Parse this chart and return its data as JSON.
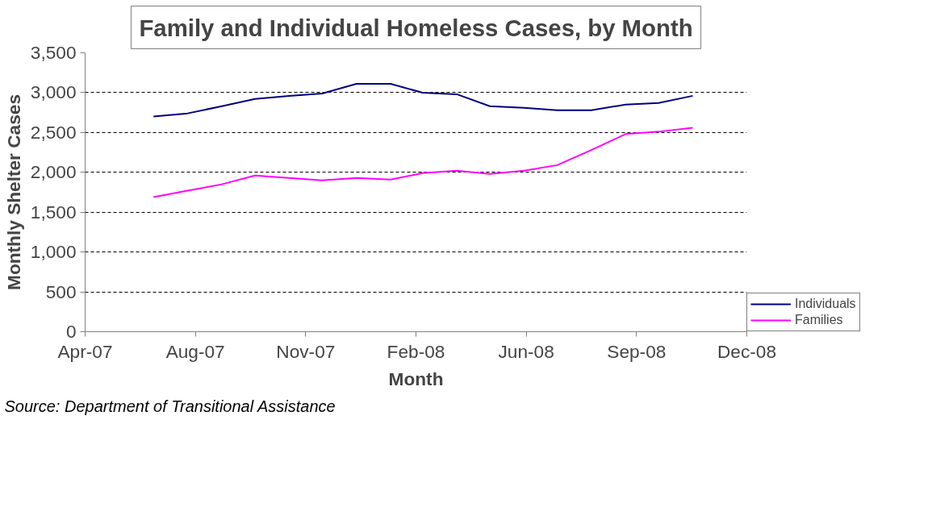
{
  "chart_data": {
    "type": "line",
    "title": "Family and Individual Homeless Cases, by Month",
    "xlabel": "Month",
    "ylabel": "Monthly Shelter Cases",
    "x": [
      "2007-07-01",
      "2007-08-01",
      "2007-09-01",
      "2007-10-01",
      "2007-11-01",
      "2007-12-01",
      "2008-01-01",
      "2008-02-01",
      "2008-03-01",
      "2008-04-01",
      "2008-05-01",
      "2008-06-01",
      "2008-07-01",
      "2008-08-01",
      "2008-09-01",
      "2008-10-01",
      "2008-11-01"
    ],
    "series": [
      {
        "name": "Individuals",
        "color": "#000080",
        "values": [
          2700,
          2740,
          2830,
          2920,
          2960,
          2990,
          3110,
          3110,
          3000,
          2980,
          2830,
          2810,
          2780,
          2780,
          2850,
          2870,
          2960
        ]
      },
      {
        "name": "Families",
        "color": "#ff00ff",
        "values": [
          1690,
          1770,
          1850,
          1960,
          1930,
          1900,
          1930,
          1910,
          1990,
          2020,
          1980,
          2020,
          2090,
          2280,
          2480,
          2510,
          2560
        ]
      }
    ],
    "xlim": [
      "2007-04-30",
      "2008-12-20"
    ],
    "xticks": [
      {
        "value": "2007-04-30",
        "label": "Apr-07"
      },
      {
        "value": "2007-08-08",
        "label": "Aug-07"
      },
      {
        "value": "2007-11-16",
        "label": "Nov-07"
      },
      {
        "value": "2008-02-24",
        "label": "Feb-08"
      },
      {
        "value": "2008-06-03",
        "label": "Jun-08"
      },
      {
        "value": "2008-09-11",
        "label": "Sep-08"
      },
      {
        "value": "2008-12-20",
        "label": "Dec-08"
      }
    ],
    "ylim": [
      0,
      3500
    ],
    "yticks": [
      {
        "value": 0,
        "label": "0"
      },
      {
        "value": 500,
        "label": "500"
      },
      {
        "value": 1000,
        "label": "1,000"
      },
      {
        "value": 1500,
        "label": "1,500"
      },
      {
        "value": 2000,
        "label": "2,000"
      },
      {
        "value": 2500,
        "label": "2,500"
      },
      {
        "value": 3000,
        "label": "3,000"
      },
      {
        "value": 3500,
        "label": "3,500"
      }
    ],
    "grid": "y",
    "legend": "bottom right",
    "marker": "none",
    "line_style": "solid",
    "annotations": [
      "Source: Department of Transitional Assistance"
    ]
  }
}
